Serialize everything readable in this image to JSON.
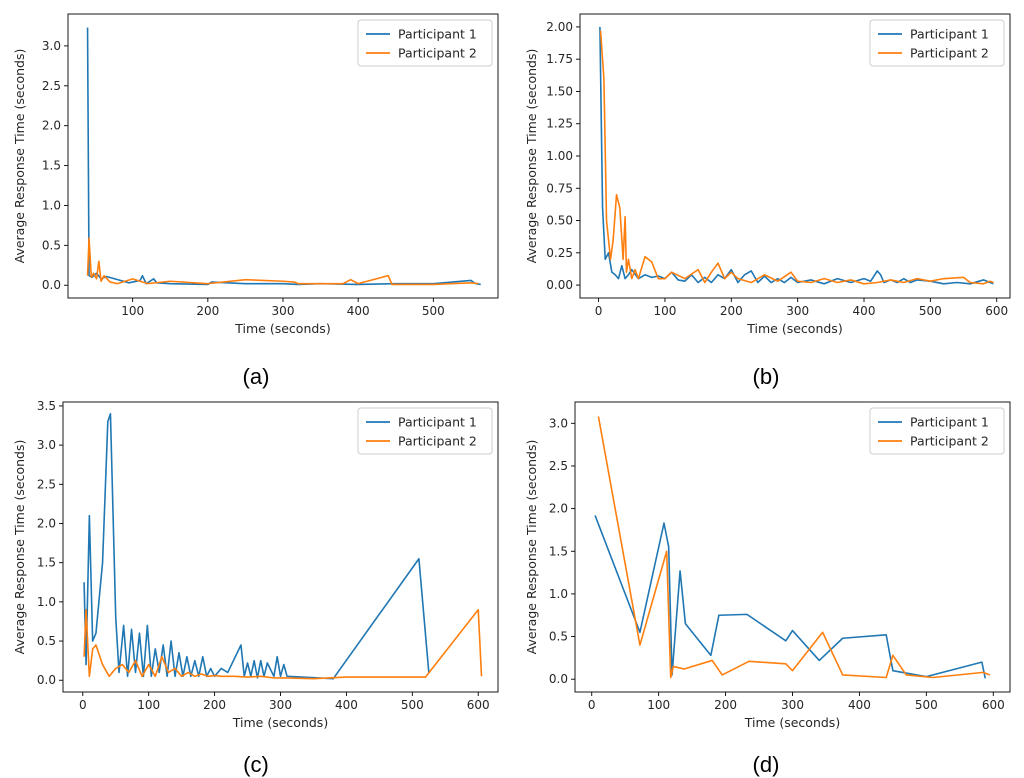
{
  "colors": {
    "series1": "#1f77b4",
    "series2": "#ff7f0e"
  },
  "chart_data": [
    {
      "panel": "a",
      "caption": "(a)",
      "type": "line",
      "xlabel": "Time (seconds)",
      "ylabel": "Average Response Time (seconds)",
      "xlim": [
        14,
        586
      ],
      "ylim": [
        -0.16,
        3.4
      ],
      "xticks": [
        100,
        200,
        300,
        400,
        500
      ],
      "yticks": [
        "0.0",
        "0.5",
        "1.0",
        "1.5",
        "2.0",
        "2.5",
        "3.0"
      ],
      "legend": "top-right",
      "series": [
        {
          "name": "Participant 1",
          "x": [
            40,
            42,
            46,
            52,
            58,
            65,
            80,
            95,
            110,
            113,
            118,
            128,
            132,
            150,
            200,
            205,
            250,
            300,
            320,
            350,
            400,
            450,
            500,
            550,
            556,
            563
          ],
          "y": [
            3.23,
            0.12,
            0.1,
            0.15,
            0.08,
            0.11,
            0.07,
            0.03,
            0.06,
            0.12,
            0.02,
            0.08,
            0.03,
            0.02,
            0.01,
            0.04,
            0.02,
            0.02,
            0.01,
            0.02,
            0.01,
            0.02,
            0.02,
            0.06,
            0.02,
            0.01
          ]
        },
        {
          "name": "Participant 2",
          "x": [
            40,
            42,
            45,
            48,
            52,
            55,
            58,
            62,
            70,
            80,
            90,
            100,
            120,
            150,
            200,
            250,
            300,
            315,
            320,
            350,
            380,
            390,
            400,
            440,
            445,
            450,
            500,
            550,
            560
          ],
          "y": [
            0.12,
            0.59,
            0.1,
            0.15,
            0.08,
            0.3,
            0.05,
            0.12,
            0.04,
            0.02,
            0.05,
            0.08,
            0.02,
            0.05,
            0.02,
            0.07,
            0.05,
            0.04,
            0.02,
            0.02,
            0.02,
            0.07,
            0.02,
            0.12,
            0.01,
            0.01,
            0.01,
            0.03,
            0.02
          ]
        }
      ]
    },
    {
      "panel": "b",
      "caption": "(b)",
      "type": "line",
      "xlabel": "Time (seconds)",
      "ylabel": "Average Response Time (seconds)",
      "xlim": [
        -28,
        620
      ],
      "ylim": [
        -0.1,
        2.1
      ],
      "xticks": [
        0,
        100,
        200,
        300,
        400,
        500,
        600
      ],
      "yticks": [
        "0.00",
        "0.25",
        "0.50",
        "0.75",
        "1.00",
        "1.25",
        "1.50",
        "1.75",
        "2.00"
      ],
      "legend": "top-right",
      "series": [
        {
          "name": "Participant 1",
          "x": [
            2,
            6,
            10,
            15,
            20,
            25,
            30,
            35,
            40,
            45,
            50,
            60,
            70,
            80,
            90,
            100,
            110,
            120,
            130,
            140,
            150,
            160,
            170,
            180,
            190,
            200,
            210,
            220,
            230,
            240,
            250,
            260,
            270,
            280,
            290,
            300,
            320,
            340,
            360,
            380,
            400,
            410,
            420,
            425,
            430,
            440,
            450,
            460,
            470,
            480,
            500,
            520,
            540,
            560,
            580,
            595
          ],
          "y": [
            2.0,
            0.6,
            0.2,
            0.25,
            0.1,
            0.08,
            0.05,
            0.15,
            0.05,
            0.08,
            0.12,
            0.05,
            0.08,
            0.06,
            0.07,
            0.05,
            0.1,
            0.04,
            0.03,
            0.08,
            0.02,
            0.06,
            0.02,
            0.08,
            0.05,
            0.12,
            0.02,
            0.08,
            0.11,
            0.02,
            0.07,
            0.02,
            0.05,
            0.02,
            0.06,
            0.02,
            0.04,
            0.01,
            0.05,
            0.02,
            0.05,
            0.03,
            0.11,
            0.08,
            0.02,
            0.04,
            0.02,
            0.05,
            0.02,
            0.04,
            0.03,
            0.01,
            0.02,
            0.01,
            0.04,
            0.01
          ]
        },
        {
          "name": "Participant 2",
          "x": [
            3,
            8,
            12,
            18,
            22,
            27,
            32,
            37,
            40,
            42,
            45,
            50,
            55,
            60,
            70,
            80,
            90,
            100,
            110,
            130,
            150,
            160,
            170,
            180,
            190,
            200,
            210,
            230,
            250,
            270,
            290,
            300,
            320,
            340,
            360,
            380,
            400,
            420,
            440,
            460,
            480,
            500,
            520,
            550,
            560,
            580,
            590,
            595
          ],
          "y": [
            1.97,
            1.6,
            0.5,
            0.2,
            0.35,
            0.7,
            0.6,
            0.2,
            0.53,
            0.1,
            0.2,
            0.05,
            0.12,
            0.05,
            0.22,
            0.18,
            0.05,
            0.05,
            0.1,
            0.05,
            0.12,
            0.02,
            0.1,
            0.17,
            0.05,
            0.1,
            0.05,
            0.02,
            0.08,
            0.03,
            0.1,
            0.03,
            0.02,
            0.05,
            0.02,
            0.04,
            0.01,
            0.02,
            0.04,
            0.02,
            0.05,
            0.03,
            0.05,
            0.06,
            0.02,
            0.01,
            0.03,
            0.02
          ]
        }
      ]
    },
    {
      "panel": "c",
      "caption": "(c)",
      "type": "line",
      "xlabel": "Time (seconds)",
      "ylabel": "Average Response Time (seconds)",
      "xlim": [
        -30,
        630
      ],
      "ylim": [
        -0.15,
        3.55
      ],
      "xticks": [
        0,
        100,
        200,
        300,
        400,
        500,
        600
      ],
      "yticks": [
        "0.0",
        "0.5",
        "1.0",
        "1.5",
        "2.0",
        "2.5",
        "3.0",
        "3.5"
      ],
      "legend": "top-right",
      "series": [
        {
          "name": "Participant 1",
          "x": [
            2,
            5,
            10,
            15,
            20,
            30,
            38,
            42,
            50,
            55,
            62,
            68,
            74,
            80,
            86,
            92,
            98,
            104,
            110,
            116,
            122,
            128,
            134,
            140,
            146,
            152,
            158,
            164,
            170,
            176,
            182,
            188,
            194,
            200,
            210,
            220,
            240,
            245,
            250,
            255,
            260,
            265,
            270,
            275,
            280,
            290,
            295,
            300,
            305,
            310,
            380,
            510,
            525
          ],
          "y": [
            1.25,
            0.2,
            2.1,
            0.5,
            0.6,
            1.5,
            3.3,
            3.4,
            0.8,
            0.1,
            0.7,
            0.05,
            0.65,
            0.1,
            0.6,
            0.05,
            0.7,
            0.05,
            0.4,
            0.1,
            0.45,
            0.05,
            0.5,
            0.05,
            0.35,
            0.05,
            0.3,
            0.05,
            0.25,
            0.05,
            0.3,
            0.05,
            0.15,
            0.05,
            0.15,
            0.1,
            0.45,
            0.05,
            0.22,
            0.05,
            0.25,
            0.03,
            0.25,
            0.05,
            0.22,
            0.05,
            0.3,
            0.05,
            0.2,
            0.05,
            0.02,
            1.55,
            0.1
          ]
        },
        {
          "name": "Participant 2",
          "x": [
            2,
            5,
            10,
            15,
            20,
            30,
            40,
            50,
            60,
            70,
            80,
            90,
            100,
            110,
            120,
            130,
            140,
            150,
            160,
            170,
            180,
            190,
            200,
            210,
            230,
            250,
            270,
            290,
            310,
            350,
            400,
            450,
            500,
            520,
            600,
            605
          ],
          "y": [
            0.3,
            0.9,
            0.05,
            0.4,
            0.45,
            0.2,
            0.05,
            0.15,
            0.2,
            0.1,
            0.25,
            0.05,
            0.2,
            0.05,
            0.3,
            0.1,
            0.15,
            0.05,
            0.1,
            0.05,
            0.08,
            0.05,
            0.06,
            0.05,
            0.05,
            0.04,
            0.05,
            0.03,
            0.03,
            0.02,
            0.04,
            0.04,
            0.04,
            0.04,
            0.9,
            0.05
          ]
        }
      ]
    },
    {
      "panel": "d",
      "caption": "(d)",
      "type": "line",
      "xlabel": "Time (seconds)",
      "ylabel": "Average Response Time (seconds)",
      "xlim": [
        -25,
        625
      ],
      "ylim": [
        -0.15,
        3.25
      ],
      "xticks": [
        0,
        100,
        200,
        300,
        400,
        500,
        600
      ],
      "yticks": [
        "0.0",
        "0.5",
        "1.0",
        "1.5",
        "2.0",
        "2.5",
        "3.0"
      ],
      "legend": "top-right",
      "series": [
        {
          "name": "Participant 1",
          "x": [
            5,
            72,
            108,
            115,
            120,
            132,
            140,
            178,
            190,
            232,
            290,
            300,
            340,
            375,
            440,
            450,
            500,
            583,
            588
          ],
          "y": [
            1.92,
            0.55,
            1.83,
            1.55,
            0.05,
            1.27,
            0.65,
            0.28,
            0.75,
            0.76,
            0.45,
            0.57,
            0.22,
            0.48,
            0.52,
            0.1,
            0.03,
            0.2,
            0.01
          ]
        },
        {
          "name": "Participant 2",
          "x": [
            10,
            72,
            112,
            118,
            122,
            138,
            180,
            195,
            235,
            290,
            300,
            345,
            375,
            440,
            450,
            470,
            510,
            585,
            595
          ],
          "y": [
            3.08,
            0.4,
            1.5,
            0.02,
            0.15,
            0.12,
            0.22,
            0.05,
            0.21,
            0.18,
            0.1,
            0.55,
            0.05,
            0.02,
            0.28,
            0.05,
            0.02,
            0.08,
            0.05
          ]
        }
      ]
    }
  ]
}
